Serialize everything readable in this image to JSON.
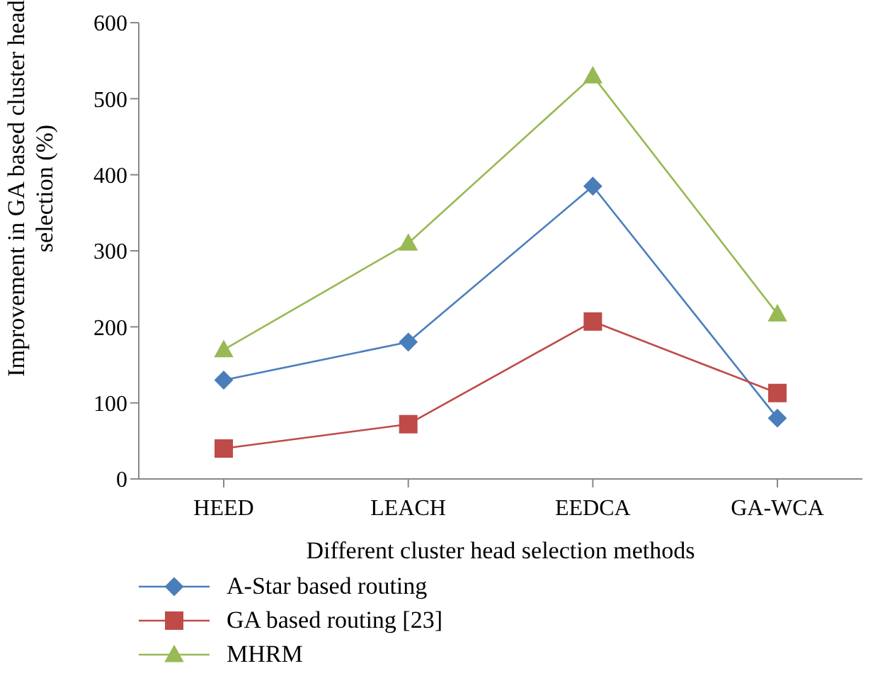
{
  "chart_data": {
    "type": "line",
    "xlabel": "Different cluster head selection methods",
    "ylabel": "Improvement in GA based cluster head selection (%)",
    "categories": [
      "HEED",
      "LEACH",
      "EEDCA",
      "GA-WCA"
    ],
    "ylim": [
      0,
      600
    ],
    "yticks": [
      0,
      100,
      200,
      300,
      400,
      500,
      600
    ],
    "grid": false,
    "legend": "bottom left",
    "series": [
      {
        "name": "A-Star based routing",
        "color": "#4a7ebb",
        "marker": "diamond",
        "values": [
          130,
          180,
          385,
          80
        ]
      },
      {
        "name": "GA based routing [23]",
        "color": "#be4b48",
        "marker": "square",
        "values": [
          40,
          72,
          207,
          113
        ]
      },
      {
        "name": "MHRM",
        "color": "#98b954",
        "marker": "triangle",
        "values": [
          170,
          310,
          530,
          217
        ]
      }
    ]
  }
}
